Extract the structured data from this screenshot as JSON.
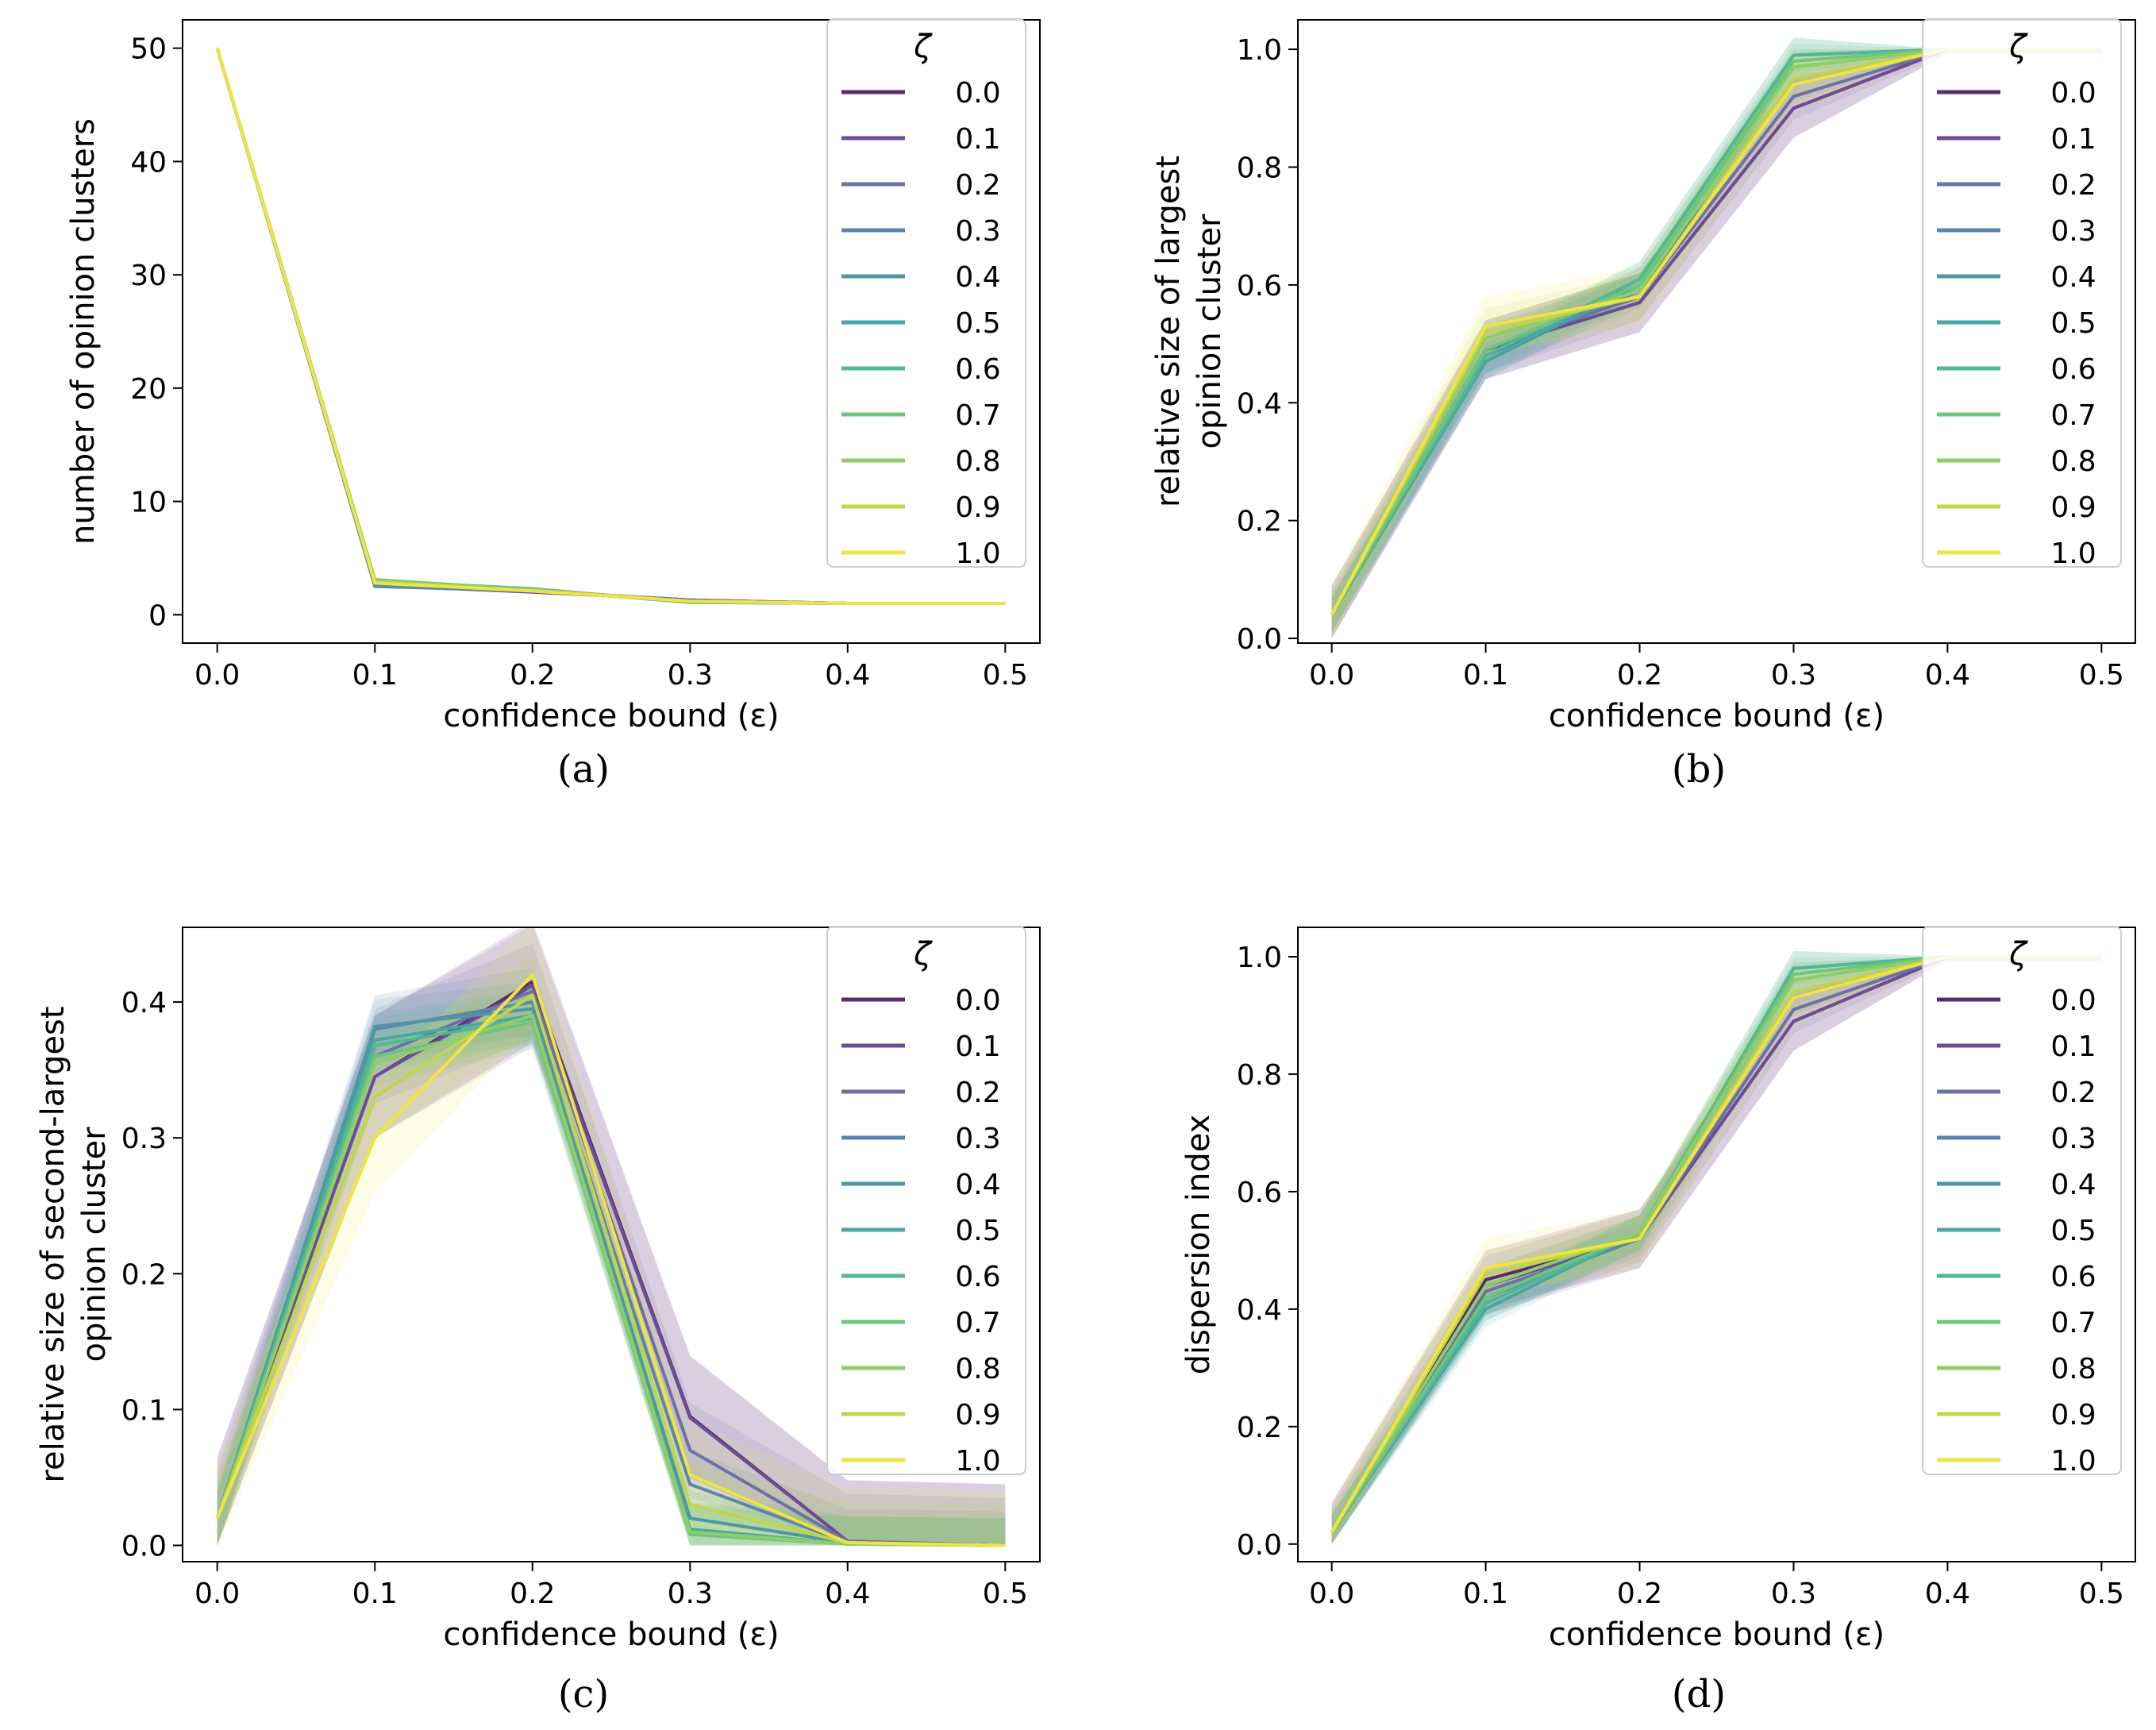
{
  "legend_title": "ζ",
  "zeta_values": [
    "0.0",
    "0.1",
    "0.2",
    "0.3",
    "0.4",
    "0.5",
    "0.6",
    "0.7",
    "0.8",
    "0.9",
    "1.0"
  ],
  "series_colors": [
    "#5b2a6e",
    "#6b4c9a",
    "#6c6fa8",
    "#5b85aa",
    "#4e97a7",
    "#48a9a0",
    "#52b891",
    "#6fc47e",
    "#8fce67",
    "#bfd64a",
    "#f0e442"
  ],
  "chart_data": [
    {
      "panel": "a",
      "caption": "(a)",
      "type": "line",
      "xlabel": "confidence bound (ε)",
      "ylabel": [
        "number of opinion clusters"
      ],
      "x": [
        0.0,
        0.1,
        0.2,
        0.3,
        0.4,
        0.5
      ],
      "xticks": [
        "0.0",
        "0.1",
        "0.2",
        "0.3",
        "0.4",
        "0.5"
      ],
      "xlim": [
        -0.022,
        0.522
      ],
      "ylim": [
        -2.5,
        52.5
      ],
      "yticks": [
        0,
        10,
        20,
        30,
        40,
        50
      ],
      "ytick_labels": [
        "0",
        "10",
        "20",
        "30",
        "40",
        "50"
      ],
      "legend": "top-right",
      "series": [
        {
          "name": "0.0",
          "values": [
            50,
            2.7,
            2.1,
            1.3,
            1.0,
            1.0
          ],
          "band": 0.0
        },
        {
          "name": "0.1",
          "values": [
            50,
            2.6,
            2.0,
            1.3,
            1.0,
            1.0
          ],
          "band": 0.0
        },
        {
          "name": "0.2",
          "values": [
            50,
            2.6,
            2.1,
            1.3,
            1.0,
            1.0
          ],
          "band": 0.0
        },
        {
          "name": "0.3",
          "values": [
            50,
            2.5,
            2.1,
            1.2,
            1.0,
            1.0
          ],
          "band": 0.0
        },
        {
          "name": "0.4",
          "values": [
            50,
            2.6,
            2.2,
            1.2,
            1.0,
            1.0
          ],
          "band": 0.0
        },
        {
          "name": "0.5",
          "values": [
            50,
            2.9,
            2.2,
            1.1,
            1.0,
            1.0
          ],
          "band": 0.0
        },
        {
          "name": "0.6",
          "values": [
            50,
            3.0,
            2.3,
            1.1,
            1.0,
            1.0
          ],
          "band": 0.0
        },
        {
          "name": "0.7",
          "values": [
            50,
            3.1,
            2.2,
            1.1,
            1.0,
            1.0
          ],
          "band": 0.0
        },
        {
          "name": "0.8",
          "values": [
            50,
            3.0,
            2.2,
            1.2,
            1.0,
            1.0
          ],
          "band": 0.0
        },
        {
          "name": "0.9",
          "values": [
            50,
            2.9,
            2.1,
            1.2,
            1.0,
            1.0
          ],
          "band": 0.0
        },
        {
          "name": "1.0",
          "values": [
            50,
            2.8,
            2.1,
            1.2,
            1.0,
            1.0
          ],
          "band": 0.0
        }
      ]
    },
    {
      "panel": "b",
      "caption": "(b)",
      "type": "line",
      "xlabel": "confidence bound (ε)",
      "ylabel": [
        "relative size of largest",
        "opinion cluster"
      ],
      "x": [
        0.0,
        0.1,
        0.2,
        0.3,
        0.4,
        0.5
      ],
      "xticks": [
        "0.0",
        "0.1",
        "0.2",
        "0.3",
        "0.4",
        "0.5"
      ],
      "xlim": [
        -0.022,
        0.522
      ],
      "ylim": [
        -0.008,
        1.05
      ],
      "yticks": [
        0.0,
        0.2,
        0.4,
        0.6,
        0.8,
        1.0
      ],
      "ytick_labels": [
        "0.0",
        "0.2",
        "0.4",
        "0.6",
        "0.8",
        "1.0"
      ],
      "legend": "top-right",
      "series": [
        {
          "name": "0.0",
          "values": [
            0.04,
            0.49,
            0.57,
            0.9,
            1.0,
            1.0
          ],
          "band": 0.05
        },
        {
          "name": "0.1",
          "values": [
            0.04,
            0.49,
            0.57,
            0.9,
            1.0,
            1.0
          ],
          "band": 0.05
        },
        {
          "name": "0.2",
          "values": [
            0.04,
            0.49,
            0.58,
            0.92,
            1.0,
            1.0
          ],
          "band": 0.04
        },
        {
          "name": "0.3",
          "values": [
            0.04,
            0.48,
            0.59,
            0.94,
            1.0,
            1.0
          ],
          "band": 0.03
        },
        {
          "name": "0.4",
          "values": [
            0.04,
            0.47,
            0.6,
            0.97,
            1.0,
            1.0
          ],
          "band": 0.03
        },
        {
          "name": "0.5",
          "values": [
            0.04,
            0.47,
            0.61,
            0.99,
            1.0,
            1.0
          ],
          "band": 0.03
        },
        {
          "name": "0.6",
          "values": [
            0.04,
            0.48,
            0.61,
            0.99,
            1.0,
            1.0
          ],
          "band": 0.03
        },
        {
          "name": "0.7",
          "values": [
            0.04,
            0.49,
            0.6,
            0.98,
            1.0,
            1.0
          ],
          "band": 0.03
        },
        {
          "name": "0.8",
          "values": [
            0.04,
            0.51,
            0.59,
            0.97,
            1.0,
            1.0
          ],
          "band": 0.03
        },
        {
          "name": "0.9",
          "values": [
            0.04,
            0.52,
            0.58,
            0.95,
            1.0,
            1.0
          ],
          "band": 0.04
        },
        {
          "name": "1.0",
          "values": [
            0.04,
            0.53,
            0.58,
            0.94,
            1.0,
            1.0
          ],
          "band": 0.05
        }
      ]
    },
    {
      "panel": "c",
      "caption": "(c)",
      "type": "line",
      "xlabel": "confidence bound (ε)",
      "ylabel": [
        "relative size of second-largest",
        "opinion cluster"
      ],
      "x": [
        0.0,
        0.1,
        0.2,
        0.3,
        0.4,
        0.5
      ],
      "xticks": [
        "0.0",
        "0.1",
        "0.2",
        "0.3",
        "0.4",
        "0.5"
      ],
      "xlim": [
        -0.022,
        0.522
      ],
      "ylim": [
        -0.012,
        0.455
      ],
      "yticks": [
        0.0,
        0.1,
        0.2,
        0.3,
        0.4
      ],
      "ytick_labels": [
        "0.0",
        "0.1",
        "0.2",
        "0.3",
        "0.4"
      ],
      "legend": "top-right",
      "series": [
        {
          "name": "0.0",
          "values": [
            0.02,
            0.345,
            0.415,
            0.095,
            0.003,
            0.0
          ],
          "band": 0.045
        },
        {
          "name": "0.1",
          "values": [
            0.02,
            0.345,
            0.412,
            0.094,
            0.003,
            0.0
          ],
          "band": 0.045
        },
        {
          "name": "0.2",
          "values": [
            0.02,
            0.36,
            0.408,
            0.07,
            0.003,
            0.0
          ],
          "band": 0.035
        },
        {
          "name": "0.3",
          "values": [
            0.02,
            0.38,
            0.4,
            0.045,
            0.002,
            0.0
          ],
          "band": 0.025
        },
        {
          "name": "0.4",
          "values": [
            0.02,
            0.382,
            0.395,
            0.02,
            0.002,
            0.0
          ],
          "band": 0.02
        },
        {
          "name": "0.5",
          "values": [
            0.02,
            0.372,
            0.39,
            0.012,
            0.001,
            0.0
          ],
          "band": 0.02
        },
        {
          "name": "0.6",
          "values": [
            0.02,
            0.368,
            0.388,
            0.01,
            0.001,
            0.0
          ],
          "band": 0.02
        },
        {
          "name": "0.7",
          "values": [
            0.02,
            0.36,
            0.385,
            0.008,
            0.001,
            0.0
          ],
          "band": 0.02
        },
        {
          "name": "0.8",
          "values": [
            0.02,
            0.355,
            0.39,
            0.01,
            0.001,
            0.0
          ],
          "band": 0.02
        },
        {
          "name": "0.9",
          "values": [
            0.02,
            0.33,
            0.405,
            0.03,
            0.002,
            0.0
          ],
          "band": 0.03
        },
        {
          "name": "1.0",
          "values": [
            0.02,
            0.3,
            0.42,
            0.052,
            0.002,
            0.0
          ],
          "band": 0.04
        }
      ]
    },
    {
      "panel": "d",
      "caption": "(d)",
      "type": "line",
      "xlabel": "confidence bound (ε)",
      "ylabel": [
        "dispersion index"
      ],
      "x": [
        0.0,
        0.1,
        0.2,
        0.3,
        0.4,
        0.5
      ],
      "xticks": [
        "0.0",
        "0.1",
        "0.2",
        "0.3",
        "0.4",
        "0.5"
      ],
      "xlim": [
        -0.022,
        0.522
      ],
      "ylim": [
        -0.03,
        1.05
      ],
      "yticks": [
        0.0,
        0.2,
        0.4,
        0.6,
        0.8,
        1.0
      ],
      "ytick_labels": [
        "0.0",
        "0.2",
        "0.4",
        "0.6",
        "0.8",
        "1.0"
      ],
      "legend": "top-right",
      "series": [
        {
          "name": "0.0",
          "values": [
            0.02,
            0.45,
            0.52,
            0.89,
            1.0,
            1.0
          ],
          "band": 0.05
        },
        {
          "name": "0.1",
          "values": [
            0.02,
            0.44,
            0.52,
            0.89,
            1.0,
            1.0
          ],
          "band": 0.05
        },
        {
          "name": "0.2",
          "values": [
            0.02,
            0.43,
            0.52,
            0.91,
            1.0,
            1.0
          ],
          "band": 0.04
        },
        {
          "name": "0.3",
          "values": [
            0.02,
            0.42,
            0.52,
            0.93,
            1.0,
            1.0
          ],
          "band": 0.03
        },
        {
          "name": "0.4",
          "values": [
            0.02,
            0.41,
            0.53,
            0.96,
            1.0,
            1.0
          ],
          "band": 0.03
        },
        {
          "name": "0.5",
          "values": [
            0.02,
            0.4,
            0.53,
            0.98,
            1.0,
            1.0
          ],
          "band": 0.03
        },
        {
          "name": "0.6",
          "values": [
            0.02,
            0.41,
            0.53,
            0.98,
            1.0,
            1.0
          ],
          "band": 0.03
        },
        {
          "name": "0.7",
          "values": [
            0.02,
            0.42,
            0.53,
            0.97,
            1.0,
            1.0
          ],
          "band": 0.03
        },
        {
          "name": "0.8",
          "values": [
            0.02,
            0.44,
            0.53,
            0.96,
            1.0,
            1.0
          ],
          "band": 0.03
        },
        {
          "name": "0.9",
          "values": [
            0.02,
            0.46,
            0.52,
            0.94,
            1.0,
            1.0
          ],
          "band": 0.04
        },
        {
          "name": "1.0",
          "values": [
            0.02,
            0.47,
            0.52,
            0.93,
            1.0,
            1.0
          ],
          "band": 0.05
        }
      ]
    }
  ]
}
